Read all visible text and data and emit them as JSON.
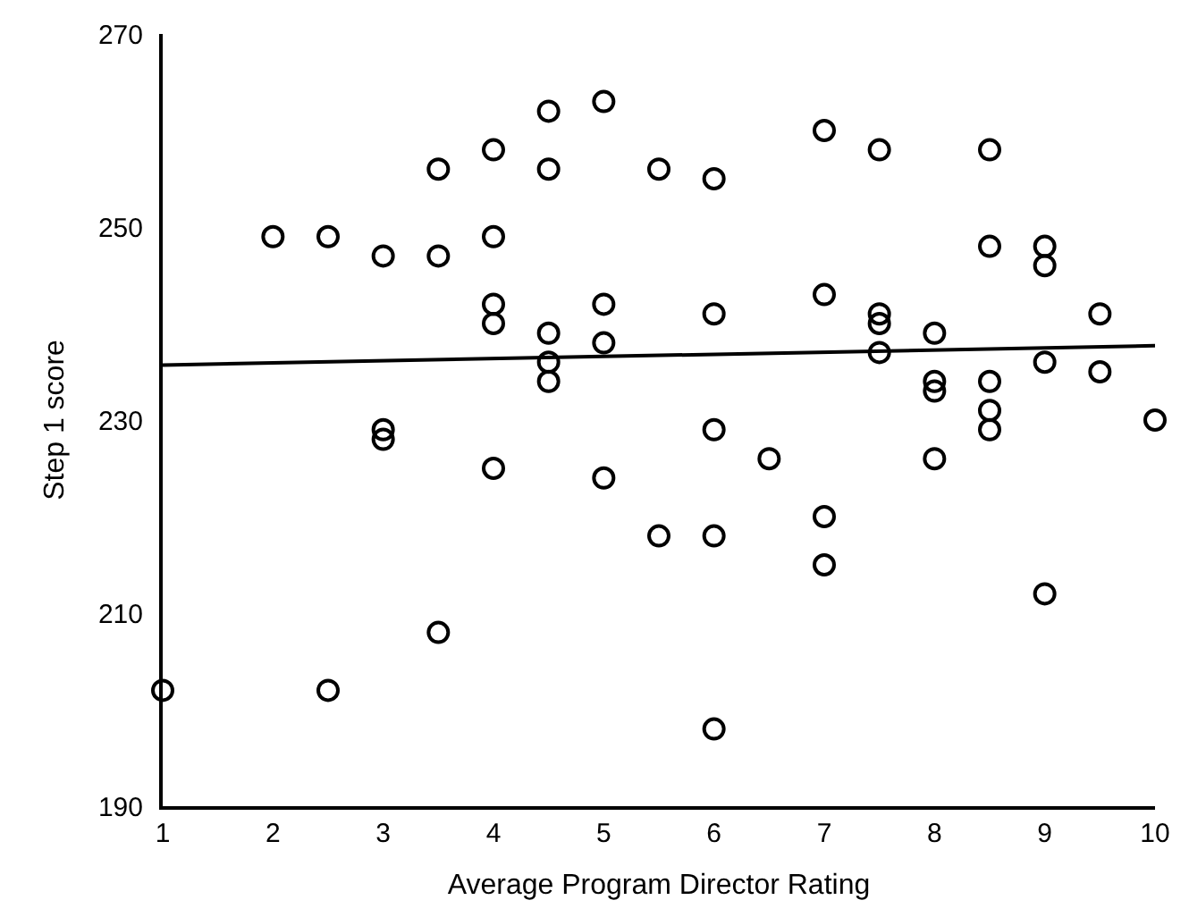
{
  "chart_data": {
    "type": "scatter",
    "xlabel": "Average Program Director Rating",
    "ylabel": "Step 1 score",
    "xlim": [
      1,
      10
    ],
    "xticks": [
      1,
      2,
      3,
      4,
      5,
      6,
      7,
      8,
      9,
      10
    ],
    "ylim": [
      190,
      270
    ],
    "yticks": [
      190,
      210,
      230,
      250,
      270
    ],
    "grid": false,
    "series": [
      {
        "marker": "circle",
        "color": "#000000",
        "x": [
          1,
          2,
          2.5,
          2.5,
          3,
          3,
          3,
          3.5,
          3.5,
          3.5,
          4,
          4,
          4,
          4,
          4,
          4.5,
          4.5,
          4.5,
          4.5,
          4.5,
          5,
          5,
          5,
          5,
          5.5,
          5.5,
          6,
          6,
          6,
          6,
          6,
          6.5,
          7,
          7,
          7,
          7,
          7.5,
          7.5,
          7.5,
          7.5,
          8,
          8,
          8,
          8,
          8.5,
          8.5,
          8.5,
          8.5,
          8.5,
          9,
          9,
          9,
          9,
          9.5,
          9.5,
          10
        ],
        "values": [
          202,
          249,
          249,
          202,
          247,
          229,
          228,
          256,
          247,
          208,
          258,
          249,
          242,
          240,
          225,
          262,
          256,
          239,
          236,
          234,
          263,
          242,
          238,
          224,
          256,
          218,
          255,
          241,
          229,
          218,
          198,
          226,
          260,
          243,
          220,
          215,
          258,
          241,
          240,
          237,
          239,
          234,
          233,
          226,
          258,
          248,
          234,
          231,
          229,
          248,
          246,
          236,
          212,
          241,
          235,
          230
        ]
      },
      {
        "type": "line",
        "color": "#000000",
        "line_style": "solid",
        "marker": "none",
        "x": [
          1,
          10
        ],
        "values": [
          235.7,
          237.7
        ]
      }
    ]
  }
}
